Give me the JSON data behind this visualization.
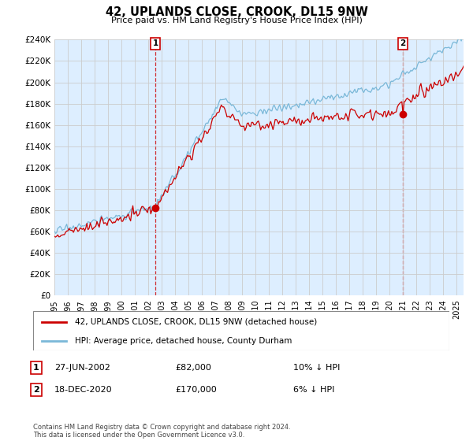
{
  "title": "42, UPLANDS CLOSE, CROOK, DL15 9NW",
  "subtitle": "Price paid vs. HM Land Registry's House Price Index (HPI)",
  "ylim": [
    0,
    240000
  ],
  "yticks": [
    0,
    20000,
    40000,
    60000,
    80000,
    100000,
    120000,
    140000,
    160000,
    180000,
    200000,
    220000,
    240000
  ],
  "sale1_date": "27-JUN-2002",
  "sale1_price": 82000,
  "sale1_label": "10% ↓ HPI",
  "sale1_x": 2002.49,
  "sale2_date": "18-DEC-2020",
  "sale2_price": 170000,
  "sale2_label": "6% ↓ HPI",
  "sale2_x": 2020.96,
  "legend_line1": "42, UPLANDS CLOSE, CROOK, DL15 9NW (detached house)",
  "legend_line2": "HPI: Average price, detached house, County Durham",
  "footer": "Contains HM Land Registry data © Crown copyright and database right 2024.\nThis data is licensed under the Open Government Licence v3.0.",
  "hpi_color": "#7ab8d8",
  "price_color": "#cc0000",
  "marker_color": "#cc0000",
  "grid_color": "#cccccc",
  "bg_plot_color": "#ddeeff",
  "background_color": "#ffffff"
}
